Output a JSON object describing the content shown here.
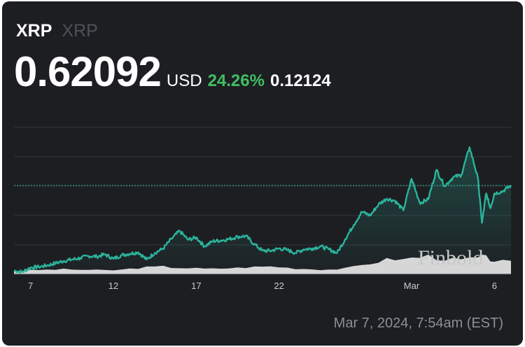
{
  "header": {
    "ticker": "XRP",
    "name": "XRP",
    "price": "0.62092",
    "currency": "USD",
    "change_percent": "24.26%",
    "change_value": "0.12124"
  },
  "timestamp": "Mar 7, 2024, 7:54am (EST)",
  "watermark": "Finbold",
  "colors": {
    "background": "#1d1e22",
    "line": "#2bb39b",
    "positive": "#3fbf63",
    "volume": "#e6e6e6",
    "grid": "#33363b"
  },
  "chart_data": {
    "type": "line",
    "x_start": "2024-02-06",
    "x_end": "2024-03-07",
    "xticks": [
      {
        "date": "2024-02-07",
        "label": "7"
      },
      {
        "date": "2024-02-12",
        "label": "12"
      },
      {
        "date": "2024-02-17",
        "label": "17"
      },
      {
        "date": "2024-02-22",
        "label": "22"
      },
      {
        "date": "2024-03-01",
        "label": "Mar"
      },
      {
        "date": "2024-03-06",
        "label": "6"
      }
    ],
    "ylim": [
      0.5,
      0.74
    ],
    "grid_values": [
      0.54,
      0.58,
      0.62,
      0.66,
      0.7
    ],
    "reference_value": 0.62092,
    "series": [
      {
        "x": [
          "2024-02-06",
          "2024-02-06T12:00",
          "2024-02-07",
          "2024-02-07T12:00",
          "2024-02-08",
          "2024-02-08T12:00",
          "2024-02-09",
          "2024-02-09T12:00",
          "2024-02-10",
          "2024-02-10T12:00",
          "2024-02-11",
          "2024-02-11T12:00",
          "2024-02-12",
          "2024-02-12T12:00",
          "2024-02-13",
          "2024-02-13T12:00",
          "2024-02-14",
          "2024-02-14T12:00",
          "2024-02-15",
          "2024-02-15T12:00",
          "2024-02-16",
          "2024-02-16T12:00",
          "2024-02-17",
          "2024-02-17T12:00",
          "2024-02-18",
          "2024-02-18T12:00",
          "2024-02-19",
          "2024-02-19T12:00",
          "2024-02-20",
          "2024-02-20T12:00",
          "2024-02-21",
          "2024-02-21T12:00",
          "2024-02-22",
          "2024-02-22T12:00",
          "2024-02-23",
          "2024-02-23T12:00",
          "2024-02-24",
          "2024-02-24T12:00",
          "2024-02-25",
          "2024-02-25T12:00",
          "2024-02-26",
          "2024-02-26T12:00",
          "2024-02-27",
          "2024-02-27T12:00",
          "2024-02-28",
          "2024-02-28T12:00",
          "2024-02-29",
          "2024-02-29T12:00",
          "2024-03-01",
          "2024-03-01T12:00",
          "2024-03-02",
          "2024-03-02T12:00",
          "2024-03-03",
          "2024-03-03T12:00",
          "2024-03-04",
          "2024-03-04T12:00",
          "2024-03-05",
          "2024-03-05T06:00",
          "2024-03-05T12:00",
          "2024-03-05T18:00",
          "2024-03-06",
          "2024-03-06T12:00",
          "2024-03-07"
        ],
        "values": [
          0.505,
          0.503,
          0.509,
          0.51,
          0.512,
          0.515,
          0.518,
          0.52,
          0.522,
          0.525,
          0.524,
          0.527,
          0.521,
          0.526,
          0.528,
          0.53,
          0.52,
          0.529,
          0.535,
          0.548,
          0.559,
          0.547,
          0.55,
          0.538,
          0.545,
          0.546,
          0.548,
          0.551,
          0.552,
          0.541,
          0.532,
          0.532,
          0.535,
          0.533,
          0.529,
          0.534,
          0.535,
          0.538,
          0.534,
          0.529,
          0.548,
          0.567,
          0.585,
          0.58,
          0.595,
          0.603,
          0.6,
          0.587,
          0.63,
          0.597,
          0.602,
          0.642,
          0.62,
          0.632,
          0.635,
          0.673,
          0.631,
          0.57,
          0.61,
          0.59,
          0.61,
          0.613,
          0.6209
        ]
      }
    ],
    "volume_relative": [
      0.18,
      0.2,
      0.22,
      0.24,
      0.25,
      0.26,
      0.27,
      0.26,
      0.25,
      0.24,
      0.23,
      0.22,
      0.22,
      0.25,
      0.3,
      0.34,
      0.38,
      0.4,
      0.42,
      0.38,
      0.36,
      0.34,
      0.32,
      0.3,
      0.3,
      0.32,
      0.34,
      0.35,
      0.38,
      0.4,
      0.42,
      0.43,
      0.4,
      0.36,
      0.32,
      0.3,
      0.28,
      0.26,
      0.26,
      0.28,
      0.32,
      0.4,
      0.5,
      0.6,
      0.7,
      0.8,
      0.85,
      0.8,
      0.9,
      0.95,
      1.0,
      0.9,
      0.85,
      0.8,
      0.78,
      0.85,
      0.9,
      0.95,
      0.92,
      0.8,
      0.75,
      0.7,
      0.65
    ]
  }
}
